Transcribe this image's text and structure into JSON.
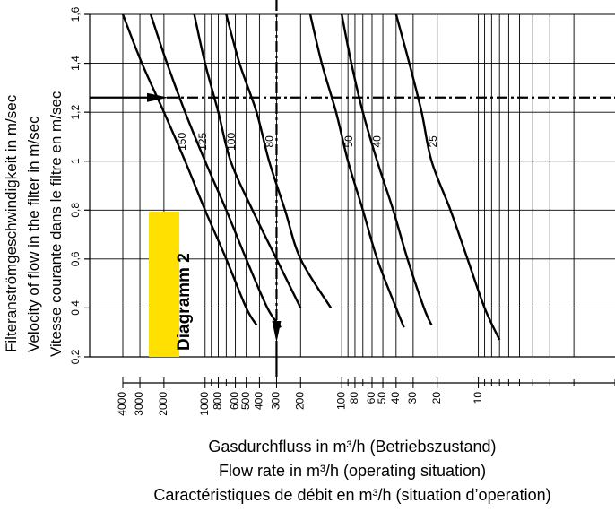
{
  "chart_data": {
    "type": "line",
    "badge": "Diagramm 2",
    "ylabels": [
      "Filteranströmgeschwindigkeit in m/sec",
      "Velocity of flow in the filter in m/sec",
      "Vitesse courante dans le filtre en m/sec"
    ],
    "xlabels": [
      "Gasdurchfluss in m³/h (Betriebszustand)",
      "Flow rate in m³/h (operating situation)",
      "Caractéristiques de débit en m³/h (situation d’operation)"
    ],
    "y_axis": {
      "range": [
        0.2,
        1.6
      ],
      "ticks": [
        "0,2",
        "0,4",
        "0,6",
        "0,8",
        "1",
        "1,2",
        "1,4",
        "1,6"
      ],
      "tick_values": [
        0.2,
        0.4,
        0.6,
        0.8,
        1.0,
        1.2,
        1.4,
        1.6
      ]
    },
    "x_axis": {
      "scale": "log",
      "direction": "reversed",
      "range": [
        4000,
        1
      ],
      "labeled_ticks": [
        "4000",
        "3000",
        "2000",
        "1000",
        "800",
        "600",
        "500",
        "400",
        "300",
        "200",
        "100",
        "80",
        "60",
        "50",
        "40",
        "30",
        "20",
        "10"
      ],
      "labeled_values": [
        4000,
        3000,
        2000,
        1000,
        800,
        600,
        500,
        400,
        300,
        200,
        100,
        80,
        60,
        50,
        40,
        30,
        20,
        10
      ],
      "minor_values": [
        900,
        700,
        90,
        70,
        9,
        8,
        7,
        6,
        5,
        4,
        3,
        2,
        1
      ]
    },
    "curve_labels": [
      "150",
      "125",
      "100",
      "80",
      "50",
      "40",
      "25"
    ],
    "series": [
      {
        "name": "150",
        "x": [
          4000,
          2900,
          2000,
          1400,
          1000,
          700,
          500,
          420
        ],
        "y": [
          1.6,
          1.4,
          1.2,
          1.0,
          0.8,
          0.6,
          0.4,
          0.33
        ]
      },
      {
        "name": "125",
        "x": [
          2500,
          1900,
          1400,
          1000,
          700,
          500,
          350,
          280
        ],
        "y": [
          1.6,
          1.4,
          1.2,
          1.0,
          0.8,
          0.6,
          0.4,
          0.32
        ]
      },
      {
        "name": "100",
        "x": [
          1200,
          1000,
          800,
          650,
          450,
          300,
          200
        ],
        "y": [
          1.6,
          1.4,
          1.2,
          1.0,
          0.8,
          0.6,
          0.4
        ]
      },
      {
        "name": "80",
        "x": [
          700,
          560,
          420,
          340,
          260,
          200,
          120
        ],
        "y": [
          1.6,
          1.4,
          1.2,
          1.0,
          0.8,
          0.6,
          0.4
        ]
      },
      {
        "name": "50",
        "x": [
          170,
          140,
          110,
          90,
          70,
          55,
          40,
          35
        ],
        "y": [
          1.6,
          1.4,
          1.2,
          1.0,
          0.8,
          0.6,
          0.4,
          0.32
        ]
      },
      {
        "name": "40",
        "x": [
          100,
          85,
          70,
          55,
          42,
          33,
          25,
          22
        ],
        "y": [
          1.6,
          1.4,
          1.2,
          1.0,
          0.8,
          0.6,
          0.4,
          0.33
        ]
      },
      {
        "name": "25",
        "x": [
          40,
          32,
          26,
          22,
          16,
          12,
          9,
          7
        ],
        "y": [
          1.6,
          1.4,
          1.2,
          1.0,
          0.8,
          0.6,
          0.4,
          0.27
        ]
      }
    ],
    "example_reading": {
      "flow": 300,
      "velocity": 1.26
    },
    "grid": true,
    "line_color": "#000000",
    "badge_color": "#ffe000"
  }
}
